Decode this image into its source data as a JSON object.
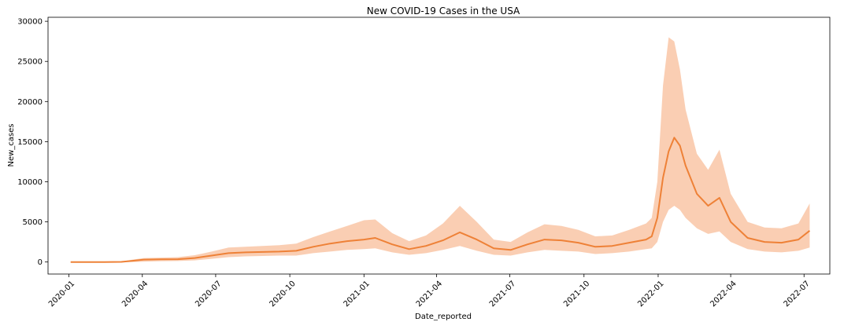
{
  "chart_data": {
    "type": "line",
    "title": "New COVID-19 Cases in the USA",
    "xlabel": "Date_reported",
    "ylabel": "New_cases",
    "xlim": [
      "2019-12-06",
      "2022-08-02"
    ],
    "ylim": [
      -1500,
      30500
    ],
    "x_ticks": [
      "2020-01",
      "2020-04",
      "2020-07",
      "2020-10",
      "2021-01",
      "2021-04",
      "2021-07",
      "2021-10",
      "2022-01",
      "2022-04",
      "2022-07"
    ],
    "y_ticks": [
      0,
      5000,
      10000,
      15000,
      20000,
      25000,
      30000
    ],
    "grid": false,
    "legend": "none",
    "line_color": "#ee8137",
    "band_color": "#f9c5a6",
    "series": [
      {
        "x": [
          "2020-01-03",
          "2020-01-24",
          "2020-02-14",
          "2020-03-06",
          "2020-03-20",
          "2020-04-03",
          "2020-04-24",
          "2020-05-15",
          "2020-06-05",
          "2020-06-26",
          "2020-07-17",
          "2020-08-07",
          "2020-08-28",
          "2020-09-18",
          "2020-10-09",
          "2020-10-30",
          "2020-11-20",
          "2020-12-11",
          "2021-01-01",
          "2021-01-15",
          "2021-02-05",
          "2021-02-26",
          "2021-03-19",
          "2021-04-09",
          "2021-04-30",
          "2021-05-21",
          "2021-06-11",
          "2021-07-02",
          "2021-07-23",
          "2021-08-13",
          "2021-09-03",
          "2021-09-24",
          "2021-10-15",
          "2021-11-05",
          "2021-11-26",
          "2021-12-17",
          "2021-12-24",
          "2021-12-31",
          "2022-01-07",
          "2022-01-14",
          "2022-01-21",
          "2022-01-28",
          "2022-02-04",
          "2022-02-18",
          "2022-03-04",
          "2022-03-18",
          "2022-04-01",
          "2022-04-22",
          "2022-05-13",
          "2022-06-03",
          "2022-06-24",
          "2022-07-08"
        ],
        "y": [
          0,
          0,
          0,
          20,
          150,
          300,
          330,
          350,
          500,
          800,
          1100,
          1200,
          1250,
          1300,
          1400,
          1900,
          2300,
          2600,
          2800,
          3000,
          2200,
          1600,
          2000,
          2700,
          3700,
          2800,
          1700,
          1500,
          2200,
          2800,
          2700,
          2400,
          1900,
          2000,
          2400,
          2800,
          3200,
          5500,
          10500,
          13800,
          15500,
          14500,
          12000,
          8500,
          7000,
          8000,
          5000,
          3000,
          2500,
          2400,
          2800,
          3900
        ],
        "lower": [
          0,
          0,
          0,
          0,
          0,
          50,
          100,
          120,
          200,
          400,
          600,
          700,
          750,
          800,
          800,
          1100,
          1300,
          1500,
          1600,
          1700,
          1200,
          900,
          1100,
          1500,
          2000,
          1400,
          900,
          800,
          1200,
          1500,
          1400,
          1300,
          1000,
          1100,
          1300,
          1600,
          1700,
          2500,
          5000,
          6500,
          7000,
          6500,
          5500,
          4200,
          3500,
          3800,
          2500,
          1600,
          1300,
          1200,
          1400,
          1800
        ],
        "upper": [
          0,
          0,
          0,
          60,
          300,
          500,
          550,
          600,
          850,
          1300,
          1800,
          1900,
          2000,
          2100,
          2300,
          3100,
          3800,
          4500,
          5200,
          5300,
          3600,
          2600,
          3300,
          4800,
          7000,
          5000,
          2800,
          2500,
          3700,
          4700,
          4500,
          4000,
          3200,
          3300,
          4000,
          4800,
          5500,
          10000,
          22000,
          28000,
          27500,
          24000,
          19000,
          13500,
          11500,
          14000,
          8500,
          5000,
          4300,
          4200,
          4800,
          7300
        ]
      }
    ]
  }
}
